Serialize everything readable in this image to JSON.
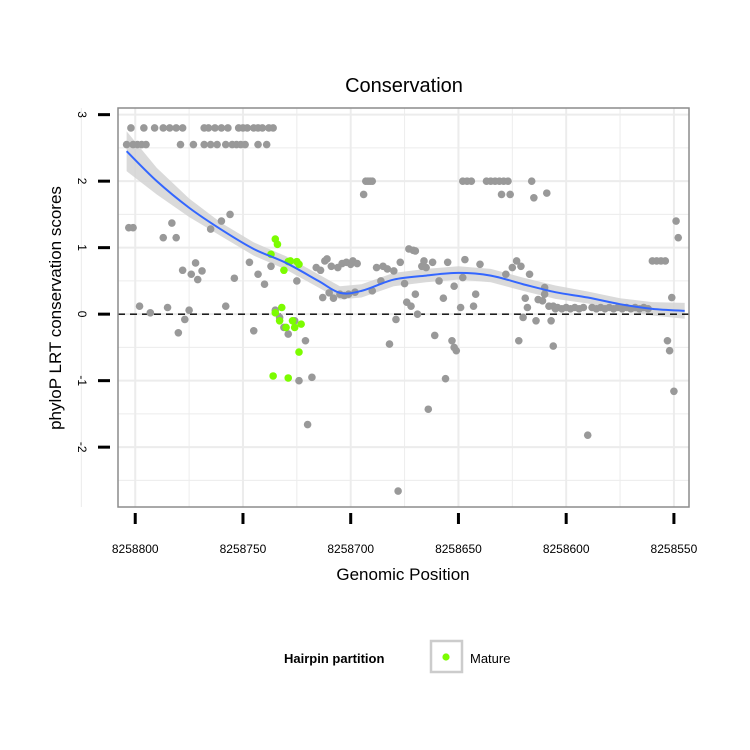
{
  "chart_data": {
    "type": "scatter",
    "title": "Conservation",
    "xlabel": "Genomic Position",
    "ylabel": "phyloP LRT conservation scores",
    "xlim": [
      8258808,
      8258543
    ],
    "ylim": [
      -2.9,
      3.1
    ],
    "x_reversed": true,
    "x_ticks": [
      8258800,
      8258750,
      8258700,
      8258650,
      8258600,
      8258550
    ],
    "x_tick_labels": [
      "8258800",
      "8258750",
      "8258700",
      "8258650",
      "8258600",
      "8258550"
    ],
    "y_ticks": [
      -2,
      -1,
      0,
      1,
      2,
      3
    ],
    "y_tick_labels": [
      "-2",
      "-1",
      "0",
      "1",
      "2",
      "3"
    ],
    "x_minor": [
      8258825,
      8258775,
      8258725,
      8258675,
      8258625,
      8258575
    ],
    "y_minor": [
      -2.5,
      -1.5,
      -0.5,
      0.5,
      1.5,
      2.5
    ],
    "reference_line": 0,
    "colors": {
      "panel": "#ffffff",
      "grid": "#ececec",
      "border": "#8c8c8c",
      "other": "#999999",
      "mature": "#7cfc00",
      "smooth": "#3366ff",
      "band": "#d4d4d4"
    },
    "legend": {
      "title": "Hairpin partition",
      "entries": [
        {
          "label": "Mature",
          "color": "#7cfc00"
        }
      ],
      "position": "bottom"
    },
    "series": [
      {
        "name": "Other",
        "color": "#999999",
        "points": [
          [
            8258802,
            2.8
          ],
          [
            8258796,
            2.8
          ],
          [
            8258791,
            2.8
          ],
          [
            8258787,
            2.8
          ],
          [
            8258784,
            2.8
          ],
          [
            8258781,
            2.8
          ],
          [
            8258778,
            2.8
          ],
          [
            8258768,
            2.8
          ],
          [
            8258766,
            2.8
          ],
          [
            8258763,
            2.8
          ],
          [
            8258760,
            2.8
          ],
          [
            8258757,
            2.8
          ],
          [
            8258752,
            2.8
          ],
          [
            8258750,
            2.8
          ],
          [
            8258748,
            2.8
          ],
          [
            8258745,
            2.8
          ],
          [
            8258743,
            2.8
          ],
          [
            8258741,
            2.8
          ],
          [
            8258738,
            2.8
          ],
          [
            8258736,
            2.8
          ],
          [
            8258804,
            2.55
          ],
          [
            8258801,
            2.55
          ],
          [
            8258799,
            2.55
          ],
          [
            8258797,
            2.55
          ],
          [
            8258795,
            2.55
          ],
          [
            8258779,
            2.55
          ],
          [
            8258773,
            2.55
          ],
          [
            8258768,
            2.55
          ],
          [
            8258765,
            2.55
          ],
          [
            8258762,
            2.55
          ],
          [
            8258758,
            2.55
          ],
          [
            8258755,
            2.55
          ],
          [
            8258753,
            2.55
          ],
          [
            8258751,
            2.55
          ],
          [
            8258749,
            2.55
          ],
          [
            8258743,
            2.55
          ],
          [
            8258739,
            2.55
          ],
          [
            8258803,
            1.3
          ],
          [
            8258801,
            1.3
          ],
          [
            8258798,
            0.12
          ],
          [
            8258793,
            0.02
          ],
          [
            8258785,
            0.1
          ],
          [
            8258787,
            1.15
          ],
          [
            8258783,
            1.37
          ],
          [
            8258781,
            1.15
          ],
          [
            8258780,
            -0.28
          ],
          [
            8258778,
            0.66
          ],
          [
            8258777,
            -0.08
          ],
          [
            8258775,
            0.06
          ],
          [
            8258774,
            0.6
          ],
          [
            8258772,
            0.77
          ],
          [
            8258771,
            0.52
          ],
          [
            8258769,
            0.65
          ],
          [
            8258765,
            1.28
          ],
          [
            8258760,
            1.4
          ],
          [
            8258758,
            0.12
          ],
          [
            8258756,
            1.5
          ],
          [
            8258754,
            0.54
          ],
          [
            8258747,
            0.78
          ],
          [
            8258745,
            -0.25
          ],
          [
            8258743,
            0.6
          ],
          [
            8258740,
            0.45
          ],
          [
            8258737,
            0.72
          ],
          [
            8258735,
            0.06
          ],
          [
            8258733,
            -0.05
          ],
          [
            8258731,
            -0.2
          ],
          [
            8258729,
            -0.3
          ],
          [
            8258726,
            -0.1
          ],
          [
            8258725,
            0.5
          ],
          [
            8258724,
            -1.0
          ],
          [
            8258721,
            -0.4
          ],
          [
            8258720,
            -1.66
          ],
          [
            8258718,
            -0.95
          ],
          [
            8258716,
            0.7
          ],
          [
            8258714,
            0.66
          ],
          [
            8258713,
            0.25
          ],
          [
            8258712,
            0.8
          ],
          [
            8258711,
            0.83
          ],
          [
            8258710,
            0.32
          ],
          [
            8258709,
            0.72
          ],
          [
            8258708,
            0.24
          ],
          [
            8258706,
            0.7
          ],
          [
            8258705,
            0.3
          ],
          [
            8258704,
            0.76
          ],
          [
            8258703,
            0.28
          ],
          [
            8258702,
            0.78
          ],
          [
            8258701,
            0.3
          ],
          [
            8258700,
            0.75
          ],
          [
            8258699,
            0.8
          ],
          [
            8258698,
            0.33
          ],
          [
            8258697,
            0.76
          ],
          [
            8258694,
            1.8
          ],
          [
            8258693,
            2.0
          ],
          [
            8258692,
            2.0
          ],
          [
            8258691,
            2.0
          ],
          [
            8258690,
            2.0
          ],
          [
            8258688,
            0.7
          ],
          [
            8258686,
            0.5
          ],
          [
            8258685,
            0.72
          ],
          [
            8258683,
            0.68
          ],
          [
            8258682,
            -0.45
          ],
          [
            8258680,
            0.65
          ],
          [
            8258679,
            -0.08
          ],
          [
            8258678,
            -2.66
          ],
          [
            8258677,
            0.78
          ],
          [
            8258675,
            0.46
          ],
          [
            8258674,
            0.18
          ],
          [
            8258673,
            0.98
          ],
          [
            8258672,
            0.12
          ],
          [
            8258671,
            0.96
          ],
          [
            8258670,
            0.95
          ],
          [
            8258669,
            0.0
          ],
          [
            8258667,
            0.72
          ],
          [
            8258666,
            0.8
          ],
          [
            8258665,
            0.7
          ],
          [
            8258664,
            -1.43
          ],
          [
            8258662,
            0.78
          ],
          [
            8258661,
            -0.32
          ],
          [
            8258659,
            0.5
          ],
          [
            8258657,
            0.24
          ],
          [
            8258656,
            -0.97
          ],
          [
            8258655,
            0.78
          ],
          [
            8258653,
            -0.4
          ],
          [
            8258652,
            -0.5
          ],
          [
            8258651,
            -0.55
          ],
          [
            8258649,
            0.1
          ],
          [
            8258648,
            0.55
          ],
          [
            8258652,
            0.42
          ],
          [
            8258648,
            2.0
          ],
          [
            8258646,
            2.0
          ],
          [
            8258644,
            2.0
          ],
          [
            8258647,
            0.82
          ],
          [
            8258643,
            0.12
          ],
          [
            8258642,
            0.3
          ],
          [
            8258640,
            0.75
          ],
          [
            8258637,
            2.0
          ],
          [
            8258635,
            2.0
          ],
          [
            8258633,
            2.0
          ],
          [
            8258631,
            2.0
          ],
          [
            8258629,
            2.0
          ],
          [
            8258627,
            2.0
          ],
          [
            8258626,
            1.8
          ],
          [
            8258630,
            1.8
          ],
          [
            8258628,
            0.6
          ],
          [
            8258625,
            0.7
          ],
          [
            8258623,
            0.8
          ],
          [
            8258622,
            -0.4
          ],
          [
            8258621,
            0.72
          ],
          [
            8258620,
            -0.05
          ],
          [
            8258619,
            0.24
          ],
          [
            8258618,
            0.1
          ],
          [
            8258617,
            0.6
          ],
          [
            8258616,
            2.0
          ],
          [
            8258615,
            1.75
          ],
          [
            8258614,
            -0.1
          ],
          [
            8258613,
            0.22
          ],
          [
            8258611,
            0.2
          ],
          [
            8258610,
            0.4
          ],
          [
            8258609,
            1.82
          ],
          [
            8258608,
            0.12
          ],
          [
            8258607,
            -0.1
          ],
          [
            8258606,
            0.12
          ],
          [
            8258605,
            0.08
          ],
          [
            8258604,
            0.1
          ],
          [
            8258602,
            0.08
          ],
          [
            8258600,
            0.1
          ],
          [
            8258598,
            0.08
          ],
          [
            8258596,
            0.1
          ],
          [
            8258594,
            0.08
          ],
          [
            8258592,
            0.1
          ],
          [
            8258590,
            -1.82
          ],
          [
            8258588,
            0.1
          ],
          [
            8258586,
            0.08
          ],
          [
            8258584,
            0.1
          ],
          [
            8258582,
            0.08
          ],
          [
            8258580,
            0.1
          ],
          [
            8258578,
            0.08
          ],
          [
            8258576,
            0.1
          ],
          [
            8258574,
            0.08
          ],
          [
            8258572,
            0.1
          ],
          [
            8258570,
            0.08
          ],
          [
            8258568,
            0.1
          ],
          [
            8258566,
            0.08
          ],
          [
            8258564,
            0.1
          ],
          [
            8258562,
            0.08
          ],
          [
            8258560,
            0.8
          ],
          [
            8258558,
            0.8
          ],
          [
            8258556,
            0.8
          ],
          [
            8258554,
            0.8
          ],
          [
            8258553,
            -0.4
          ],
          [
            8258552,
            -0.55
          ],
          [
            8258551,
            0.25
          ],
          [
            8258549,
            1.4
          ],
          [
            8258548,
            1.15
          ],
          [
            8258550,
            -1.16
          ],
          [
            8258606,
            -0.48
          ],
          [
            8258610,
            0.3
          ],
          [
            8258670,
            0.3
          ],
          [
            8258690,
            0.35
          ]
        ]
      },
      {
        "name": "Mature",
        "color": "#7cfc00",
        "points": [
          [
            8258737,
            0.9
          ],
          [
            8258735,
            1.13
          ],
          [
            8258734,
            1.05
          ],
          [
            8258733,
            -0.1
          ],
          [
            8258731,
            0.66
          ],
          [
            8258732,
            0.1
          ],
          [
            8258730,
            -0.2
          ],
          [
            8258729,
            0.79
          ],
          [
            8258728,
            0.8
          ],
          [
            8258727,
            -0.1
          ],
          [
            8258726,
            -0.2
          ],
          [
            8258725,
            0.79
          ],
          [
            8258724,
            0.75
          ],
          [
            8258723,
            -0.15
          ],
          [
            8258724,
            -0.57
          ],
          [
            8258736,
            -0.93
          ],
          [
            8258729,
            -0.96
          ],
          [
            8258735,
            0.02
          ]
        ]
      }
    ],
    "smooth": {
      "name": "loess fit",
      "x": [
        8258804,
        8258790,
        8258775,
        8258760,
        8258745,
        8258730,
        8258715,
        8258705,
        8258695,
        8258680,
        8258665,
        8258650,
        8258635,
        8258620,
        8258605,
        8258590,
        8258575,
        8258560,
        8258545
      ],
      "y": [
        2.45,
        2.0,
        1.6,
        1.27,
        0.98,
        0.77,
        0.5,
        0.32,
        0.35,
        0.52,
        0.58,
        0.62,
        0.58,
        0.45,
        0.33,
        0.25,
        0.15,
        0.08,
        0.05
      ],
      "ci_halfwidth": [
        0.3,
        0.2,
        0.14,
        0.1,
        0.1,
        0.1,
        0.1,
        0.1,
        0.1,
        0.1,
        0.1,
        0.1,
        0.1,
        0.1,
        0.1,
        0.09,
        0.09,
        0.1,
        0.12
      ]
    }
  }
}
